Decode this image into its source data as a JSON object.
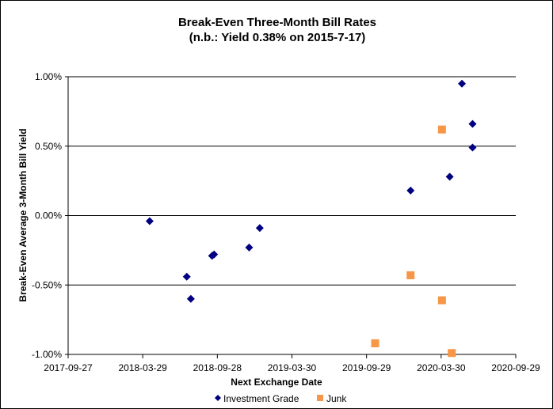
{
  "chart_data": {
    "type": "scatter",
    "title": "Break-Even Three-Month Bill Rates",
    "subtitle": "(n.b.: Yield 0.38% on 2015-7-17)",
    "xlabel": "Next Exchange Date",
    "ylabel": "Break-Even Average 3-Month Bill Yield",
    "x_ticks": [
      "2017-09-27",
      "2018-03-29",
      "2018-09-28",
      "2019-03-30",
      "2019-09-29",
      "2020-03-30",
      "2020-09-29"
    ],
    "xlim": [
      "2017-09-27",
      "2020-09-29"
    ],
    "y_ticks": [
      "-1.00%",
      "-0.50%",
      "0.00%",
      "0.50%",
      "1.00%"
    ],
    "ylim": [
      -1.0,
      1.0
    ],
    "y_unit": "%",
    "grid": "horizontal",
    "legend": "bottom",
    "series": [
      {
        "name": "Investment Grade",
        "color": "#000080",
        "marker": "diamond",
        "points": [
          {
            "x": "2018-04-15",
            "y": -0.04
          },
          {
            "x": "2018-07-15",
            "y": -0.44
          },
          {
            "x": "2018-07-25",
            "y": -0.6
          },
          {
            "x": "2018-09-15",
            "y": -0.29
          },
          {
            "x": "2018-09-20",
            "y": -0.28
          },
          {
            "x": "2018-12-15",
            "y": -0.23
          },
          {
            "x": "2019-01-10",
            "y": -0.09
          },
          {
            "x": "2020-01-15",
            "y": 0.18
          },
          {
            "x": "2020-04-20",
            "y": 0.28
          },
          {
            "x": "2020-05-20",
            "y": 0.95
          },
          {
            "x": "2020-06-15",
            "y": 0.66
          },
          {
            "x": "2020-06-15",
            "y": 0.49
          }
        ]
      },
      {
        "name": "Junk",
        "color": "#F79646",
        "marker": "square",
        "points": [
          {
            "x": "2019-10-20",
            "y": -0.92
          },
          {
            "x": "2020-01-15",
            "y": -0.43
          },
          {
            "x": "2020-04-01",
            "y": 0.62
          },
          {
            "x": "2020-04-01",
            "y": -0.61
          },
          {
            "x": "2020-04-25",
            "y": -0.99
          }
        ]
      }
    ]
  }
}
